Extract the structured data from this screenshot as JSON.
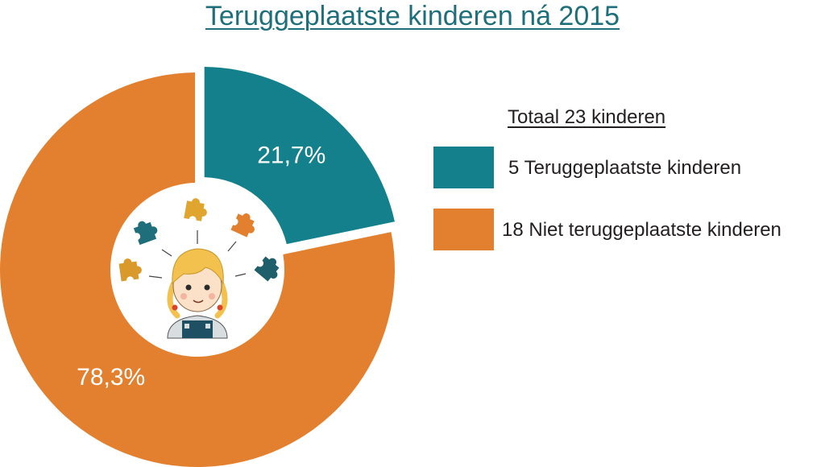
{
  "colors": {
    "teal": "#13808c",
    "orange": "#e3802f",
    "title": "#1e6f7b",
    "text": "#231f20"
  },
  "chart_data": {
    "type": "pie",
    "variant": "donut",
    "title": "Teruggeplaatste kinderen ná 2015",
    "total_label": "Totaal 23 kinderen",
    "slices": [
      {
        "legend": "5 Teruggeplaatste kinderen",
        "value": 5,
        "percent_label": "21,7%",
        "color": "#13808c",
        "exploded": true
      },
      {
        "legend": "18 Niet teruggeplaatste kinderen",
        "value": 18,
        "percent_label": "78,3%",
        "color": "#e3802f",
        "exploded": false
      }
    ],
    "legend_position": "right",
    "center_illustration": "child-with-puzzle-pieces"
  }
}
